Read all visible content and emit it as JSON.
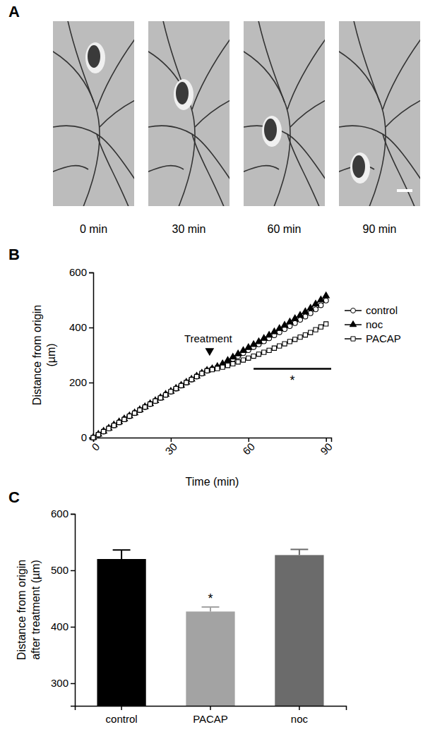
{
  "image_panel": {
    "title": "A",
    "captions": [
      "0 min",
      "30 min",
      "60 min",
      "90 min"
    ]
  },
  "chart_data": [
    {
      "type": "line",
      "title": "B",
      "x_label": "Time (min)",
      "y_label": [
        "Distance from origin",
        "(µm)"
      ],
      "x": [
        0,
        2,
        4,
        6,
        8,
        10,
        12,
        14,
        16,
        18,
        20,
        22,
        24,
        26,
        28,
        30,
        32,
        34,
        36,
        38,
        40,
        42,
        44,
        46,
        48,
        50,
        52,
        54,
        56,
        58,
        60,
        62,
        64,
        66,
        68,
        70,
        72,
        74,
        76,
        78,
        80,
        82,
        84,
        86,
        88,
        90
      ],
      "xlim": [
        0,
        92
      ],
      "xticks": [
        0,
        30,
        60,
        90
      ],
      "ylim": [
        0,
        600
      ],
      "yticks": [
        0,
        200,
        400,
        600
      ],
      "legend": "outside-right",
      "series": [
        {
          "name": "control",
          "color": "#000000",
          "marker": "open-circle",
          "values": [
            0,
            11,
            22,
            34,
            45,
            56,
            67,
            78,
            89,
            100,
            111,
            122,
            133,
            145,
            156,
            167,
            178,
            189,
            200,
            211,
            222,
            233,
            243,
            249,
            255,
            263,
            274,
            285,
            296,
            307,
            318,
            329,
            339,
            350,
            361,
            372,
            383,
            394,
            405,
            416,
            428,
            440,
            452,
            466,
            481,
            498
          ]
        },
        {
          "name": "noc",
          "color": "#000000",
          "marker": "filled-triangle",
          "values": [
            0,
            12,
            23,
            34,
            46,
            57,
            68,
            79,
            90,
            101,
            112,
            123,
            134,
            145,
            157,
            168,
            179,
            190,
            201,
            212,
            223,
            234,
            244,
            250,
            258,
            268,
            280,
            292,
            304,
            316,
            327,
            338,
            348,
            360,
            372,
            384,
            396,
            408,
            420,
            432,
            444,
            457,
            470,
            485,
            500,
            515
          ]
        },
        {
          "name": "PACAP",
          "color": "#000000",
          "marker": "open-square",
          "values": [
            0,
            11,
            22,
            33,
            44,
            55,
            66,
            78,
            89,
            100,
            111,
            122,
            133,
            144,
            155,
            167,
            178,
            189,
            200,
            211,
            222,
            233,
            243,
            247,
            251,
            256,
            262,
            268,
            275,
            282,
            289,
            296,
            303,
            310,
            317,
            325,
            333,
            341,
            349,
            357,
            365,
            373,
            382,
            392,
            402,
            413
          ]
        }
      ],
      "annotations": [
        {
          "text": "Treatment",
          "x": 45,
          "y": 300
        },
        {
          "text": "*",
          "x_start": 62,
          "x_end": 92,
          "y": 250
        }
      ]
    },
    {
      "type": "bar",
      "title": "C",
      "y_label": [
        "Distance from origin",
        "after treatment (µm)"
      ],
      "categories": [
        "control",
        "PACAP",
        "noc"
      ],
      "values": [
        520,
        427,
        527
      ],
      "errors": [
        16,
        8,
        10
      ],
      "colors": [
        "#000000",
        "#a3a3a3",
        "#6b6b6b"
      ],
      "ylim": [
        260,
        600
      ],
      "yticks": [
        300,
        400,
        500,
        600
      ],
      "annotations": [
        {
          "text": "*",
          "category": "PACAP"
        }
      ]
    }
  ]
}
